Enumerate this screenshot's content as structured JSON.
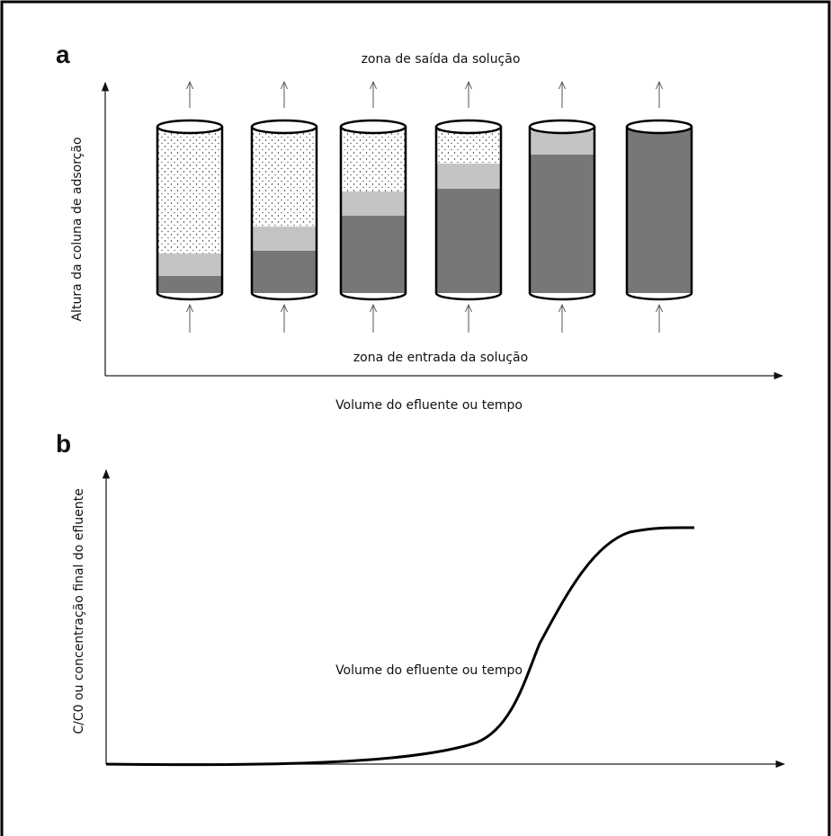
{
  "panels": [
    {
      "label": "a",
      "top_text": "zona de saída da solução",
      "bottom_text": "zona de entrada da solução",
      "y_axis_label": "Altura da coluna de adsorção",
      "x_axis_label": "Volume do efluente ou tempo"
    },
    {
      "label": "b",
      "y_axis_label": "C/C0 ou concentração final do efluente",
      "x_axis_label": "Volume do efluente ou tempo"
    }
  ]
}
